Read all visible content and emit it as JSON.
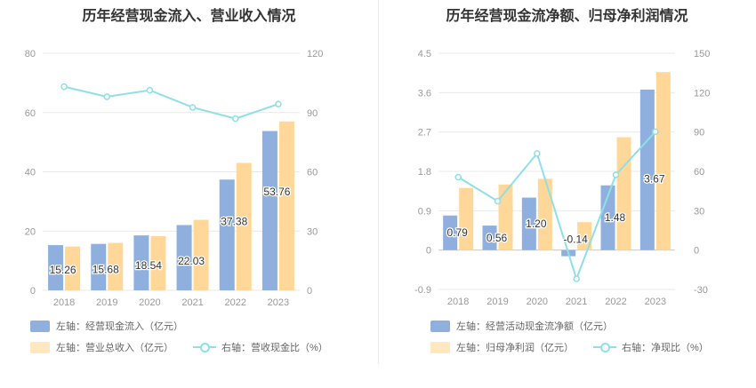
{
  "colors": {
    "bar1": "#8fb0de",
    "bar2": "#ffd899",
    "line": "#8fdfe6",
    "grid": "#e9e9e9",
    "axis_text": "#999999",
    "label": "#333333"
  },
  "chart_data": [
    {
      "type": "bar",
      "title": "历年经营现金流入、营业收入情况",
      "categories": [
        "2018",
        "2019",
        "2020",
        "2021",
        "2022",
        "2023"
      ],
      "y_left": {
        "min": 0,
        "max": 80,
        "ticks": [
          "0",
          "20",
          "40",
          "60",
          "80"
        ]
      },
      "y_right": {
        "min": 0,
        "max": 120,
        "ticks": [
          "0",
          "30",
          "60",
          "90",
          "120"
        ]
      },
      "series": [
        {
          "name": "左轴：经营现金流入（亿元）",
          "type": "bar",
          "axis": "left",
          "values": [
            15.26,
            15.68,
            18.54,
            22.03,
            37.38,
            53.76
          ],
          "labels": [
            "15.26",
            "15.68",
            "18.54",
            "22.03",
            "37.38",
            "53.76"
          ]
        },
        {
          "name": "左轴：营业总收入（亿元）",
          "type": "bar",
          "axis": "left",
          "values": [
            14.8,
            16.0,
            18.3,
            23.8,
            43.0,
            57.0
          ]
        },
        {
          "name": "右轴：营收现金比（%）",
          "type": "line",
          "axis": "right",
          "values": [
            103.1,
            98.0,
            101.3,
            92.6,
            86.9,
            94.3
          ]
        }
      ]
    },
    {
      "type": "bar",
      "title": "历年经营现金流净额、归母净利润情况",
      "categories": [
        "2018",
        "2019",
        "2020",
        "2021",
        "2022",
        "2023"
      ],
      "y_left": {
        "min": -0.9,
        "max": 4.5,
        "ticks": [
          "-0.9",
          "0",
          "0.9",
          "1.8",
          "2.7",
          "3.6",
          "4.5"
        ]
      },
      "y_right": {
        "min": -30,
        "max": 150,
        "ticks": [
          "-30",
          "0",
          "30",
          "60",
          "90",
          "120",
          "150"
        ]
      },
      "series": [
        {
          "name": "左轴：经营活动现金流净额（亿元）",
          "type": "bar",
          "axis": "left",
          "values": [
            0.79,
            0.56,
            1.2,
            -0.14,
            1.48,
            3.67
          ],
          "labels": [
            "0.79",
            "0.56",
            "1.20",
            "-0.14",
            "1.48",
            "3.67"
          ]
        },
        {
          "name": "左轴：归母净利润（亿元）",
          "type": "bar",
          "axis": "left",
          "values": [
            1.42,
            1.5,
            1.63,
            0.64,
            2.58,
            4.07
          ]
        },
        {
          "name": "右轴：净现比（%）",
          "type": "line",
          "axis": "right",
          "values": [
            55.6,
            37.3,
            73.6,
            -21.9,
            57.4,
            90.2
          ]
        }
      ]
    }
  ]
}
